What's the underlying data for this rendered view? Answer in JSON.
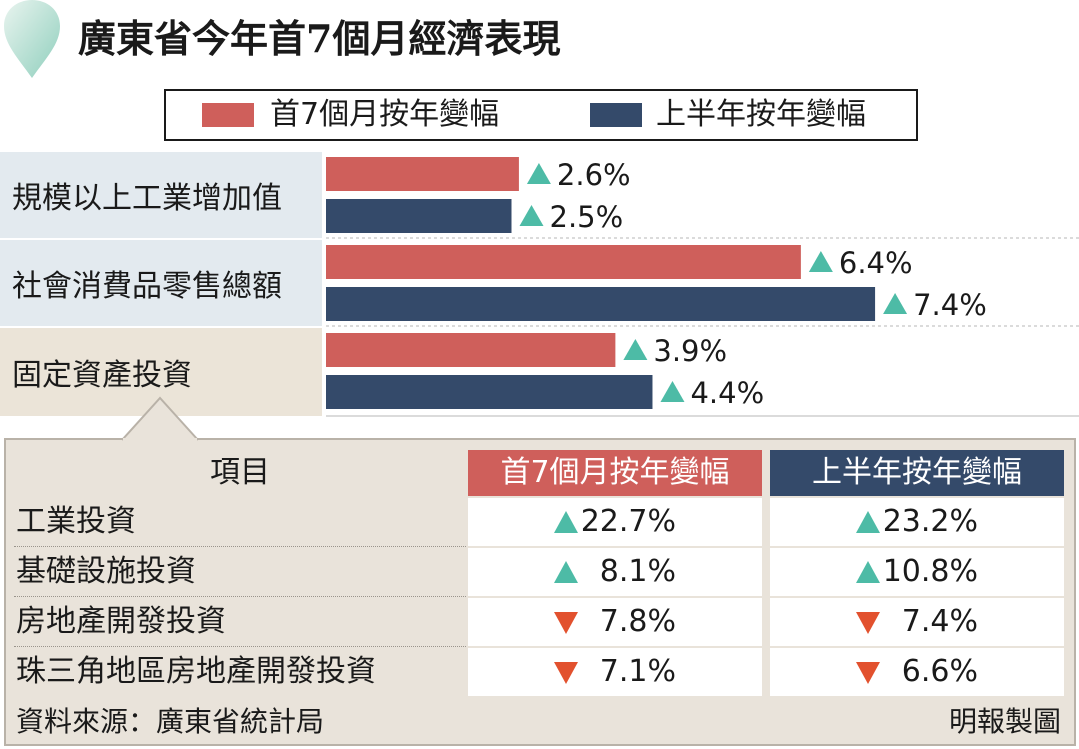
{
  "colors": {
    "red": "#cf5f5b",
    "navy": "#344a6a",
    "up": "#4dbba6",
    "down": "#e2512e",
    "label_bg_blue": "#e3eaef",
    "label_bg_beige": "#ebe4d8"
  },
  "title": "廣東省今年首7個月經濟表現",
  "legend": {
    "series1": "首7個月按年變幅",
    "series2": "上半年按年變幅"
  },
  "chart_data": {
    "type": "bar",
    "orientation": "horizontal",
    "categories": [
      "規模以上工業增加值",
      "社會消費品零售總額",
      "固定資產投資"
    ],
    "series": [
      {
        "name": "首7個月按年變幅",
        "values": [
          2.6,
          6.4,
          3.9
        ],
        "labels": [
          "2.6%",
          "6.4%",
          "3.9%"
        ],
        "color": "#cf5f5b"
      },
      {
        "name": "上半年按年變幅",
        "values": [
          2.5,
          7.4,
          4.4
        ],
        "labels": [
          "2.5%",
          "7.4%",
          "4.4%"
        ],
        "color": "#344a6a"
      }
    ],
    "direction_icon": "up-triangle-icon"
  },
  "table": {
    "headers": [
      "項目",
      "首7個月按年變幅",
      "上半年按年變幅"
    ],
    "rows": [
      {
        "label": "工業投資",
        "c1": "22.7%",
        "c1_dir": "up",
        "c2": "23.2%",
        "c2_dir": "up"
      },
      {
        "label": "基礎設施投資",
        "c1": "8.1%",
        "c1_dir": "up",
        "c2": "10.8%",
        "c2_dir": "up"
      },
      {
        "label": "房地產開發投資",
        "c1": "7.8%",
        "c1_dir": "down",
        "c2": "7.4%",
        "c2_dir": "down"
      },
      {
        "label": "珠三角地區房地產開發投資",
        "c1": "7.1%",
        "c1_dir": "down",
        "c2": "6.6%",
        "c2_dir": "down"
      }
    ]
  },
  "footer": {
    "source": "資料來源：廣東省統計局",
    "credit": "明報製圖"
  }
}
